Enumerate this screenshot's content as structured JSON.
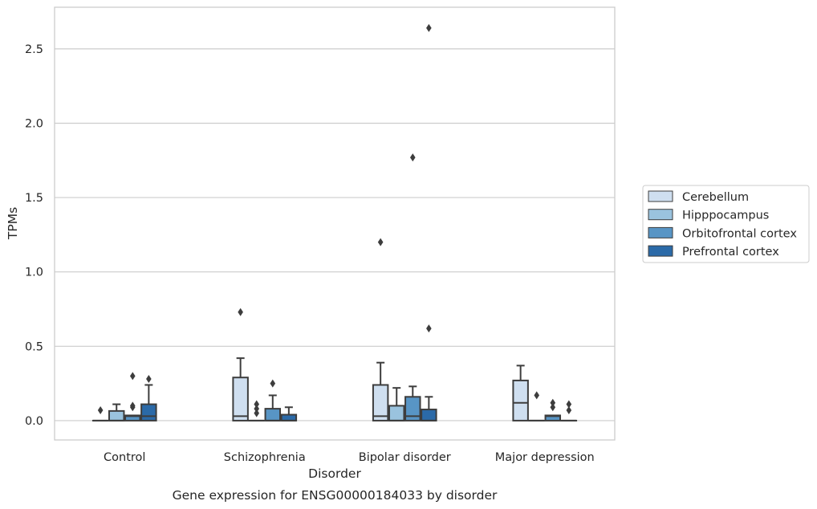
{
  "chart_data": {
    "type": "box",
    "title": "Gene expression for ENSG00000184033 by disorder",
    "xlabel": "Disorder",
    "ylabel": "TPMs",
    "ylim": [
      -0.13,
      2.78
    ],
    "yticks": [
      0.0,
      0.5,
      1.0,
      1.5,
      2.0,
      2.5
    ],
    "ytick_labels": [
      "0.0",
      "0.5",
      "1.0",
      "1.5",
      "2.0",
      "2.5"
    ],
    "grid": true,
    "legend_position": "right",
    "categories": [
      "Control",
      "Schizophrenia",
      "Bipolar disorder",
      "Major depression"
    ],
    "series": [
      {
        "name": "Cerebellum",
        "color": "#cfdff0",
        "boxes": [
          {
            "q1": 0.0,
            "median": 0.0,
            "q3": 0.0,
            "whisker_low": 0.0,
            "whisker_high": 0.0,
            "outliers": [
              0.07
            ]
          },
          {
            "q1": 0.0,
            "median": 0.03,
            "q3": 0.29,
            "whisker_low": 0.0,
            "whisker_high": 0.42,
            "outliers": [
              0.73
            ]
          },
          {
            "q1": 0.0,
            "median": 0.03,
            "q3": 0.24,
            "whisker_low": 0.0,
            "whisker_high": 0.39,
            "outliers": [
              1.2
            ]
          },
          {
            "q1": 0.0,
            "median": 0.12,
            "q3": 0.27,
            "whisker_low": 0.0,
            "whisker_high": 0.37,
            "outliers": []
          }
        ]
      },
      {
        "name": "Hipppocampus",
        "color": "#9ac3de",
        "boxes": [
          {
            "q1": 0.0,
            "median": 0.0,
            "q3": 0.065,
            "whisker_low": 0.0,
            "whisker_high": 0.11,
            "outliers": []
          },
          {
            "q1": 0.0,
            "median": 0.0,
            "q3": 0.0,
            "whisker_low": 0.0,
            "whisker_high": 0.0,
            "outliers": [
              0.05,
              0.08,
              0.11
            ]
          },
          {
            "q1": 0.0,
            "median": 0.0,
            "q3": 0.1,
            "whisker_low": 0.0,
            "whisker_high": 0.22,
            "outliers": []
          },
          {
            "q1": 0.0,
            "median": 0.0,
            "q3": 0.0,
            "whisker_low": 0.0,
            "whisker_high": 0.0,
            "outliers": [
              0.17
            ]
          }
        ]
      },
      {
        "name": "Orbitofrontal cortex",
        "color": "#5895c5",
        "boxes": [
          {
            "q1": 0.0,
            "median": 0.03,
            "q3": 0.035,
            "whisker_low": 0.0,
            "whisker_high": 0.035,
            "outliers": [
              0.09,
              0.1,
              0.3
            ]
          },
          {
            "q1": 0.0,
            "median": 0.0,
            "q3": 0.08,
            "whisker_low": 0.0,
            "whisker_high": 0.17,
            "outliers": [
              0.25
            ]
          },
          {
            "q1": 0.0,
            "median": 0.03,
            "q3": 0.16,
            "whisker_low": 0.0,
            "whisker_high": 0.23,
            "outliers": [
              1.77
            ]
          },
          {
            "q1": 0.0,
            "median": 0.03,
            "q3": 0.035,
            "whisker_low": 0.0,
            "whisker_high": 0.035,
            "outliers": [
              0.09,
              0.12
            ]
          }
        ]
      },
      {
        "name": "Prefrontal cortex",
        "color": "#2b6aa8",
        "boxes": [
          {
            "q1": 0.0,
            "median": 0.03,
            "q3": 0.11,
            "whisker_low": 0.0,
            "whisker_high": 0.24,
            "outliers": [
              0.28
            ]
          },
          {
            "q1": 0.0,
            "median": 0.0,
            "q3": 0.04,
            "whisker_low": 0.0,
            "whisker_high": 0.09,
            "outliers": []
          },
          {
            "q1": 0.0,
            "median": 0.0,
            "q3": 0.075,
            "whisker_low": 0.0,
            "whisker_high": 0.16,
            "outliers": [
              0.62,
              2.64
            ]
          },
          {
            "q1": 0.0,
            "median": 0.0,
            "q3": 0.0,
            "whisker_low": 0.0,
            "whisker_high": 0.0,
            "outliers": [
              0.07,
              0.11
            ]
          }
        ]
      }
    ]
  }
}
